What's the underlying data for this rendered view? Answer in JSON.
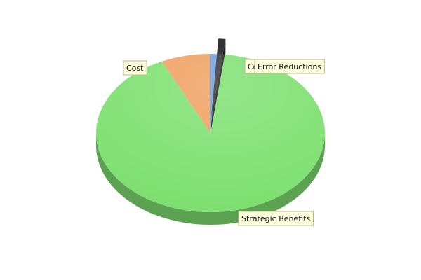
{
  "chart_data": {
    "type": "pie",
    "categories": [
      "Competitiveness",
      "Error Reductions",
      "Strategic Benefits",
      "Cost"
    ],
    "values": [
      1,
      1,
      91,
      7
    ],
    "colors": [
      "#6f9fe0",
      "#333333",
      "#7ee070",
      "#f0a060"
    ],
    "exploded": [
      false,
      true,
      false,
      false
    ]
  }
}
